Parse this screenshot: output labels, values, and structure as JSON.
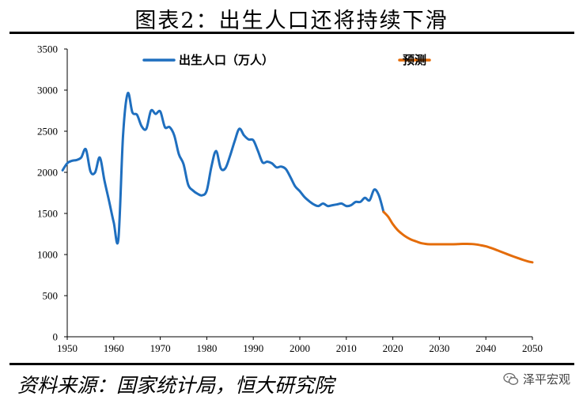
{
  "header": {
    "title": "图表2：出生人口还将持续下滑"
  },
  "footer": {
    "source": "资料来源：国家统计局，恒大研究院",
    "watermark": "泽平宏观"
  },
  "colors": {
    "historical": "#1f6fbf",
    "forecast": "#e46c0a"
  },
  "chart_data": {
    "type": "line",
    "title": "图表2：出生人口还将持续下滑",
    "xlabel": "",
    "ylabel": "",
    "xlim": [
      1950,
      2050
    ],
    "ylim": [
      0,
      3500
    ],
    "x_ticks": [
      1950,
      1960,
      1970,
      1980,
      1990,
      2000,
      2010,
      2020,
      2030,
      2040,
      2050
    ],
    "y_ticks": [
      0,
      500,
      1000,
      1500,
      2000,
      2500,
      3000,
      3500
    ],
    "legend_position": "top",
    "grid": false,
    "series": [
      {
        "name": "出生人口（万人）",
        "color": "#1f6fbf",
        "x": [
          1949,
          1950,
          1951,
          1952,
          1953,
          1954,
          1955,
          1956,
          1957,
          1958,
          1959,
          1960,
          1961,
          1962,
          1963,
          1964,
          1965,
          1966,
          1967,
          1968,
          1969,
          1970,
          1971,
          1972,
          1973,
          1974,
          1975,
          1976,
          1977,
          1978,
          1979,
          1980,
          1981,
          1982,
          1983,
          1984,
          1985,
          1986,
          1987,
          1988,
          1989,
          1990,
          1991,
          1992,
          1993,
          1994,
          1995,
          1996,
          1997,
          1998,
          1999,
          2000,
          2001,
          2002,
          2003,
          2004,
          2005,
          2006,
          2007,
          2008,
          2009,
          2010,
          2011,
          2012,
          2013,
          2014,
          2015,
          2016,
          2017,
          2018
        ],
        "values": [
          2025,
          2110,
          2140,
          2150,
          2180,
          2280,
          2010,
          2000,
          2180,
          1900,
          1650,
          1390,
          1190,
          2450,
          2960,
          2730,
          2700,
          2560,
          2530,
          2750,
          2710,
          2740,
          2550,
          2550,
          2450,
          2220,
          2100,
          1850,
          1780,
          1740,
          1720,
          1780,
          2070,
          2260,
          2050,
          2050,
          2200,
          2380,
          2530,
          2450,
          2400,
          2390,
          2260,
          2120,
          2130,
          2110,
          2060,
          2070,
          2040,
          1940,
          1830,
          1770,
          1700,
          1650,
          1610,
          1590,
          1620,
          1590,
          1600,
          1610,
          1620,
          1590,
          1600,
          1640,
          1640,
          1690,
          1660,
          1790,
          1720,
          1520
        ]
      },
      {
        "name": "预测",
        "color": "#e46c0a",
        "x": [
          2018,
          2019,
          2020,
          2021,
          2022,
          2023,
          2024,
          2025,
          2026,
          2027,
          2028,
          2029,
          2030,
          2031,
          2032,
          2033,
          2034,
          2035,
          2036,
          2037,
          2038,
          2039,
          2040,
          2041,
          2042,
          2043,
          2044,
          2045,
          2046,
          2047,
          2048,
          2049,
          2050
        ],
        "values": [
          1520,
          1460,
          1370,
          1300,
          1250,
          1210,
          1180,
          1160,
          1140,
          1130,
          1125,
          1125,
          1125,
          1125,
          1125,
          1125,
          1127,
          1130,
          1130,
          1128,
          1122,
          1112,
          1100,
          1082,
          1062,
          1040,
          1018,
          996,
          975,
          955,
          935,
          918,
          905
        ]
      }
    ]
  }
}
